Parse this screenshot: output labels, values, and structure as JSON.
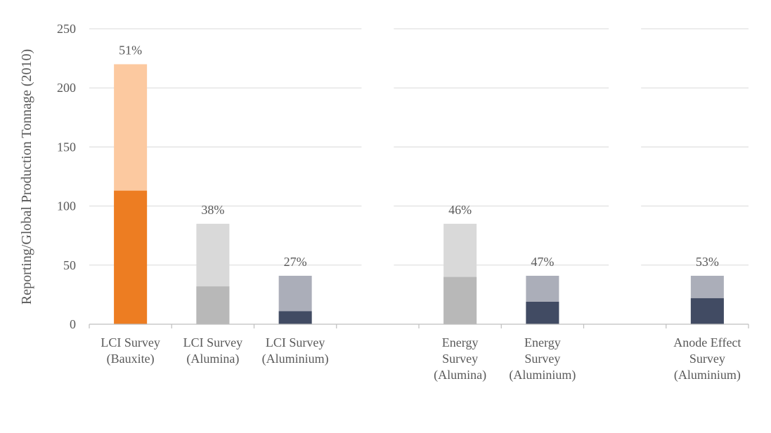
{
  "chart_data": {
    "type": "bar",
    "ylabel": "Reporting/Global Production Tonnage (2010)",
    "xlabel": "",
    "ylim": [
      0,
      250
    ],
    "yticks": [
      0,
      50,
      100,
      150,
      200,
      250
    ],
    "grid": true,
    "categories": [
      {
        "lines": [
          "LCI Survey",
          "(Bauxite)"
        ]
      },
      {
        "lines": [
          "LCI Survey",
          "(Alumina)"
        ]
      },
      {
        "lines": [
          "LCI Survey",
          "(Aluminium)"
        ]
      },
      {
        "lines": []
      },
      {
        "lines": [
          "Energy",
          "Survey",
          "(Alumina)"
        ]
      },
      {
        "lines": [
          "Energy",
          "Survey",
          "(Aluminium)"
        ]
      },
      {
        "lines": []
      },
      {
        "lines": [
          "Anode Effect",
          "Survey",
          "(Aluminium)"
        ]
      }
    ],
    "series": [
      {
        "name": "Reporting",
        "values": [
          113,
          32,
          11,
          null,
          40,
          19,
          null,
          22
        ]
      },
      {
        "name": "Global Production",
        "values": [
          220,
          85,
          41,
          null,
          85,
          41,
          null,
          41
        ]
      }
    ],
    "percent_labels": [
      "51%",
      "38%",
      "27%",
      "",
      "46%",
      "47%",
      "",
      "53%"
    ],
    "colors": {
      "reporting": [
        "#ED7D22",
        "#B8B8B8",
        "#414B63",
        null,
        "#B8B8B8",
        "#414B63",
        null,
        "#414B63"
      ],
      "global": [
        "#FCC9A0",
        "#D9D9D9",
        "#ABAEB9",
        null,
        "#D9D9D9",
        "#ABAEB9",
        null,
        "#ABAEB9"
      ],
      "grid": "#D9D9D9",
      "axis": "#BFBFBF",
      "text": "#595959"
    }
  }
}
